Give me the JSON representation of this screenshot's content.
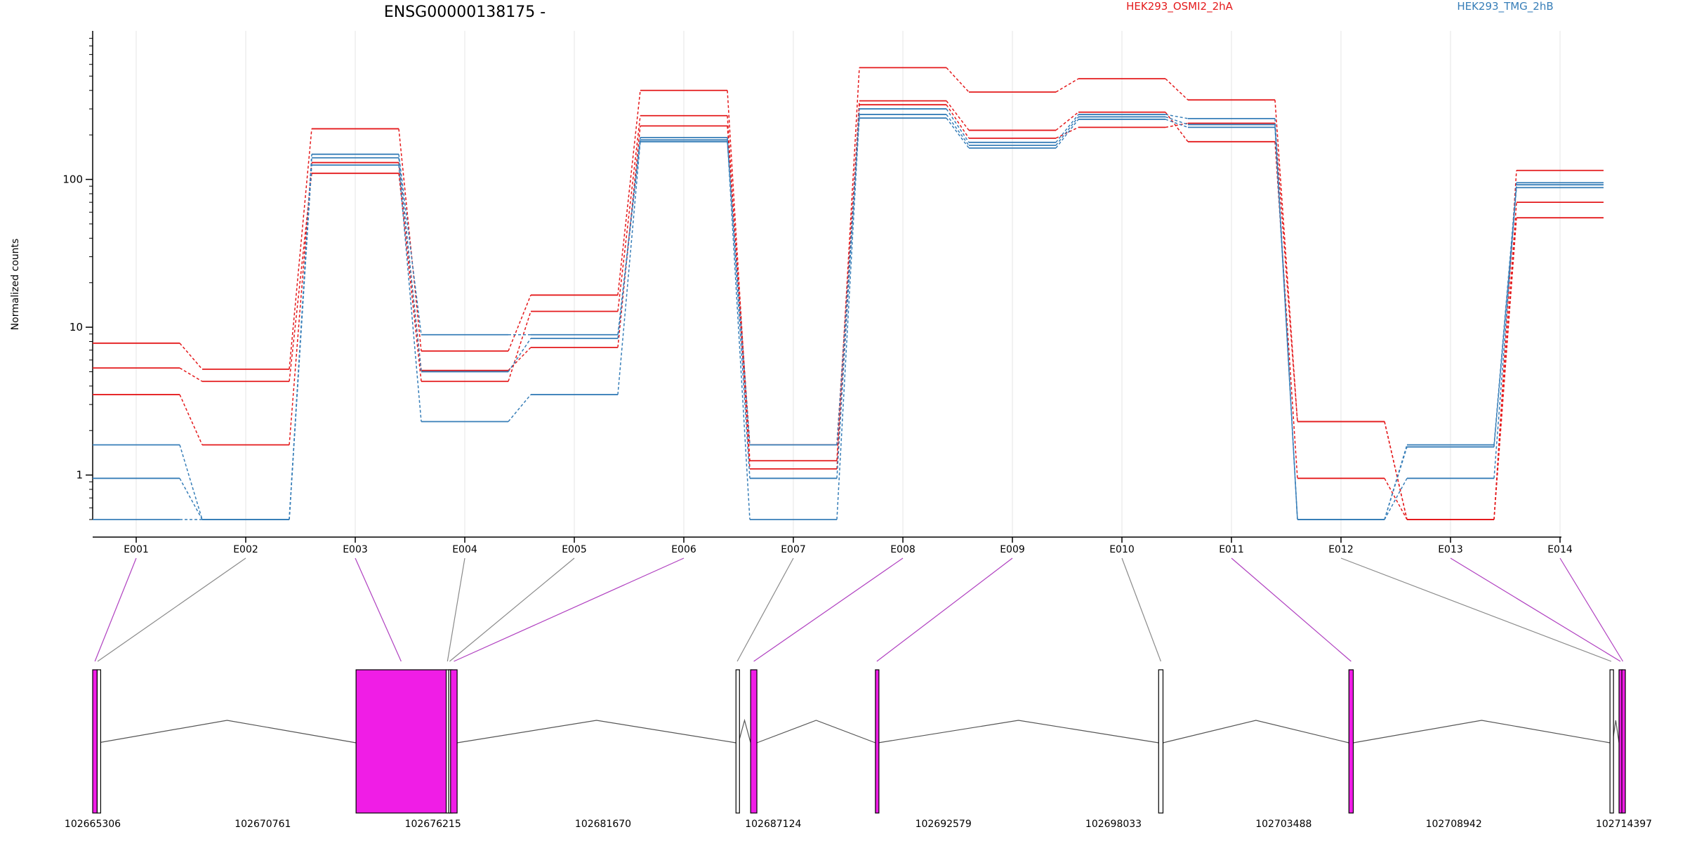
{
  "title": "ENSG00000138175 -",
  "colors": {
    "condition_a": "#e41a1c",
    "condition_b": "#377eb8",
    "exon_highlight": "#f01de6",
    "exon_plain": "#ffffff",
    "connector_highlight": "#b040c0",
    "connector_plain": "#8a8a8a",
    "grid": "#e6e6e6",
    "axis": "#000000"
  },
  "chart_data": {
    "type": "line",
    "title": "ENSG00000138175 -",
    "ylabel": "Normalized counts",
    "xlabel": "",
    "yscale": "log",
    "yticks": [
      1,
      10,
      100
    ],
    "ytick_labels": [
      "1",
      "10",
      "100"
    ],
    "categories": [
      "E001",
      "E002",
      "E003",
      "E004",
      "E005",
      "E006",
      "E007",
      "E008",
      "E009",
      "E010",
      "E011",
      "E012",
      "E013",
      "E014"
    ],
    "legend": [
      {
        "name": "HEK293_OSMI2_2hA",
        "color": "#e41a1c"
      },
      {
        "name": "HEK293_TMG_2hB",
        "color": "#377eb8"
      }
    ],
    "legend_placement": "top",
    "grid": "vertical",
    "series": [
      {
        "condition": "a",
        "values": [
          7.8,
          5.2,
          220,
          6.9,
          16.5,
          400,
          1.25,
          570,
          390,
          480,
          345,
          2.3,
          0.5,
          115
        ]
      },
      {
        "condition": "a",
        "values": [
          5.3,
          4.3,
          110,
          4.3,
          12.8,
          270,
          1.1,
          340,
          215,
          285,
          180,
          0.95,
          0.5,
          70
        ]
      },
      {
        "condition": "a",
        "values": [
          3.5,
          1.6,
          130,
          5.1,
          7.3,
          230,
          1.6,
          320,
          190,
          225,
          240,
          2.3,
          0.5,
          55
        ]
      },
      {
        "condition": "b",
        "values": [
          1.6,
          0.5,
          148,
          8.9,
          8.9,
          192,
          0.95,
          300,
          178,
          275,
          258,
          0.5,
          1.6,
          95
        ]
      },
      {
        "condition": "b",
        "values": [
          0.95,
          0.5,
          140,
          5.0,
          8.4,
          185,
          0.5,
          275,
          170,
          265,
          235,
          0.5,
          1.55,
          88
        ]
      },
      {
        "condition": "b",
        "values": [
          0.5,
          0.5,
          125,
          2.3,
          3.5,
          180,
          1.6,
          260,
          163,
          255,
          225,
          0.5,
          0.95,
          92
        ]
      }
    ],
    "highlighted_exons": [
      "E001",
      "E003",
      "E006",
      "E008",
      "E009",
      "E011",
      "E013",
      "E014"
    ]
  },
  "gene_model": {
    "coordinate_labels": [
      "102665306",
      "102670761",
      "102676215",
      "102681670",
      "102687124",
      "102692579",
      "102698033",
      "102703488",
      "102708942",
      "102714397"
    ],
    "exons": [
      {
        "id": "E001",
        "start": 102665306,
        "end": 102665450,
        "highlight": true
      },
      {
        "id": "E002",
        "start": 102665450,
        "end": 102665480,
        "highlight": false
      },
      {
        "id": "E003",
        "start": 102673750,
        "end": 102676640,
        "highlight": true
      },
      {
        "id": "E004",
        "start": 102676640,
        "end": 102676720,
        "highlight": false
      },
      {
        "id": "E005",
        "start": 102676720,
        "end": 102676780,
        "highlight": false
      },
      {
        "id": "E006",
        "start": 102676780,
        "end": 102676990,
        "highlight": true
      },
      {
        "id": "E007",
        "start": 102685930,
        "end": 102686010,
        "highlight": false
      },
      {
        "id": "E008",
        "start": 102686400,
        "end": 102686600,
        "highlight": true
      },
      {
        "id": "E009",
        "start": 102690400,
        "end": 102690490,
        "highlight": true
      },
      {
        "id": "E010",
        "start": 102699480,
        "end": 102699620,
        "highlight": false
      },
      {
        "id": "E011",
        "start": 102705580,
        "end": 102705720,
        "highlight": true
      },
      {
        "id": "E012",
        "start": 102713950,
        "end": 102714030,
        "highlight": false
      },
      {
        "id": "E013",
        "start": 102714240,
        "end": 102714330,
        "highlight": true
      },
      {
        "id": "E014",
        "start": 102714330,
        "end": 102714397,
        "highlight": true
      }
    ],
    "introns": [
      [
        102665480,
        102673750
      ],
      [
        102676990,
        102685930
      ],
      [
        102686010,
        102686400
      ],
      [
        102686600,
        102690400
      ],
      [
        102690490,
        102699480
      ],
      [
        102699620,
        102705580
      ],
      [
        102705720,
        102713950
      ],
      [
        102714030,
        102714240
      ]
    ]
  }
}
